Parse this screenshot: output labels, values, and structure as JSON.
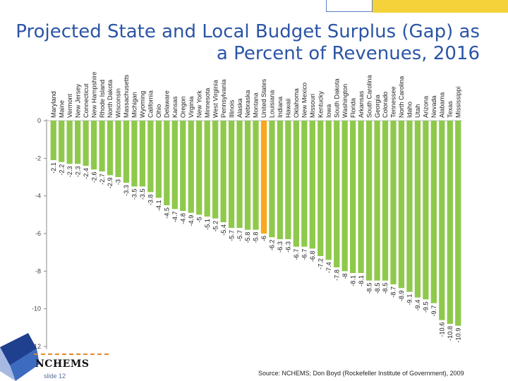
{
  "title": "Projected State and Local Budget Surplus (Gap) as a Percent of Revenues, 2016",
  "footer": {
    "logo_text": "NCHEMS",
    "slide": "slide 12",
    "source": "Source: NCHEMS; Don Boyd (Rockefeller Institute of Government), 2009"
  },
  "colors": {
    "bar": "#8fc94c",
    "bar_highlight": "#f7a81b",
    "title": "#2b55a6",
    "accent_yellow": "#f5d23a"
  },
  "chart_data": {
    "type": "bar",
    "title": "Projected State and Local Budget Surplus (Gap) as a Percent of Revenues, 2016",
    "xlabel": "",
    "ylabel": "",
    "ylim": [
      -12,
      0
    ],
    "yticks": [
      0,
      -2,
      -4,
      -6,
      -8,
      -10,
      -12
    ],
    "grid": false,
    "legend": "none",
    "highlight_category": "United States",
    "categories": [
      "Maryland",
      "Maine",
      "Vermont",
      "New Jersey",
      "Connecticut",
      "New Hampshire",
      "Rhode Island",
      "North Dakota",
      "Wisconsin",
      "Massachusetts",
      "Michigan",
      "Wyoming",
      "California",
      "Ohio",
      "Delaware",
      "Kansas",
      "Oregon",
      "Virginia",
      "New York",
      "Minnesota",
      "West Virginia",
      "Pennsylvania",
      "Illinois",
      "Alaska",
      "Nebraska",
      "Montana",
      "United States",
      "Louisiana",
      "Indiana",
      "Hawaii",
      "Oklahoma",
      "New Mexico",
      "Missouri",
      "Kentucky",
      "Iowa",
      "South Dakota",
      "Washington",
      "Florida",
      "Arkansas",
      "South Carolina",
      "Georgia",
      "Colorado",
      "Tennessee",
      "North Carolina",
      "Idaho",
      "Utah",
      "Arizona",
      "Nevada",
      "Alabama",
      "Texas",
      "Mississippi"
    ],
    "values": [
      -2.1,
      -2.2,
      -2.3,
      -2.3,
      -2.4,
      -2.6,
      -2.7,
      -2.9,
      -3,
      -3.3,
      -3.5,
      -3.5,
      -3.8,
      -4.1,
      -4.5,
      -4.7,
      -4.8,
      -4.9,
      -5,
      -5.1,
      -5.2,
      -5.4,
      -5.7,
      -5.7,
      -5.8,
      -5.8,
      -6,
      -6.2,
      -6.3,
      -6.3,
      -6.7,
      -6.7,
      -6.8,
      -7.2,
      -7.4,
      -7.8,
      -8,
      -8.1,
      -8.1,
      -8.5,
      -8.5,
      -8.5,
      -8.7,
      -8.9,
      -9.1,
      -9.4,
      -9.5,
      -9.7,
      -10.6,
      -10.8,
      -10.9
    ],
    "data_labels": [
      "-2.1",
      "-2.2",
      "-2.3",
      "-2.3",
      "-2.4",
      "-2.6",
      "-2.7",
      "-2.9",
      "-3",
      "-3.3",
      "-3.5",
      "-3.5",
      "-3.8",
      "-4.1",
      "-4.5",
      "-4.7",
      "-4.8",
      "-4.9",
      "-5",
      "-5.1",
      "-5.2",
      "-5.4",
      "-5.7",
      "-5.7",
      "-5.8",
      "-5.8",
      "-6",
      "-6.2",
      "-6.3",
      "-6.3",
      "-6.7",
      "-6.7",
      "-6.8",
      "-7.2",
      "-7.4",
      "-7.8",
      "-8",
      "-8.1",
      "-8.1",
      "-8.5",
      "-8.5",
      "-8.5",
      "-8.7",
      "-8.9",
      "-9.1",
      "-9.4",
      "-9.5",
      "-9.7",
      "-10.6",
      "-10.8",
      "-10.9"
    ]
  }
}
